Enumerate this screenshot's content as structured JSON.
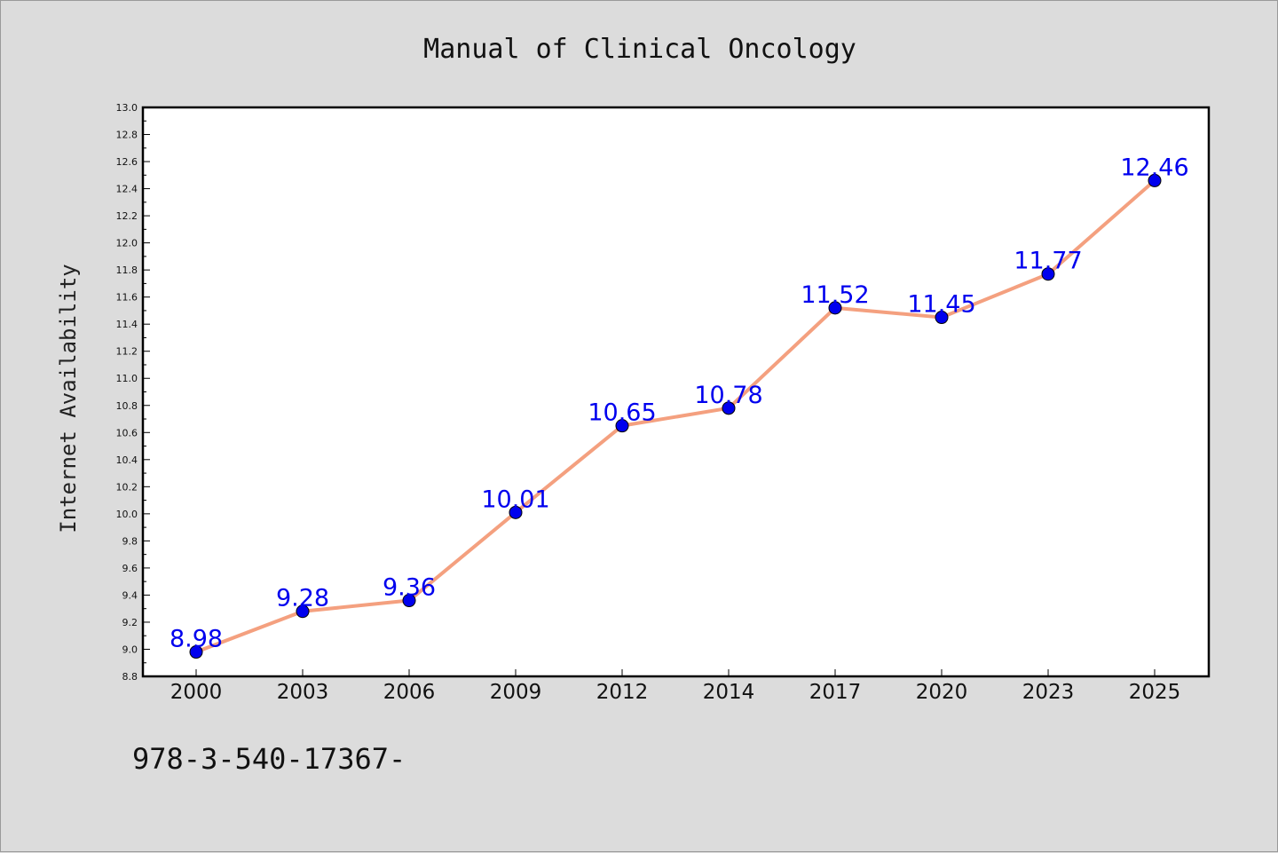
{
  "chart_data": {
    "type": "line",
    "title": "Manual of Clinical Oncology",
    "xlabel": "",
    "ylabel": "Internet Availability",
    "categories": [
      "2000",
      "2003",
      "2006",
      "2009",
      "2012",
      "2014",
      "2017",
      "2020",
      "2023",
      "2025"
    ],
    "series": [
      {
        "values": [
          8.98,
          9.28,
          9.36,
          10.01,
          10.65,
          10.78,
          11.52,
          11.45,
          11.77,
          12.46
        ]
      }
    ],
    "data_labels": [
      "8.98",
      "9.28",
      "9.36",
      "10.01",
      "10.65",
      "10.78",
      "11.52",
      "11.45",
      "11.77",
      "12.46"
    ],
    "ylim": [
      8.8,
      13.0
    ],
    "yticks": [
      "8.8",
      "9.0",
      "9.2",
      "9.4",
      "9.6",
      "9.8",
      "10.0",
      "10.2",
      "10.4",
      "10.6",
      "10.8",
      "11.0",
      "11.2",
      "11.4",
      "11.6",
      "11.8",
      "12.0",
      "12.2",
      "12.4",
      "12.6",
      "12.8",
      "13.0"
    ],
    "grid": false,
    "legend": "none",
    "colors": {
      "line": "#f4a07f",
      "marker": "#0000ee",
      "label": "#0000ee",
      "background": "#dcdcdc",
      "plot_background": "#ffffff"
    }
  },
  "footer_note": "978-3-540-17367-"
}
